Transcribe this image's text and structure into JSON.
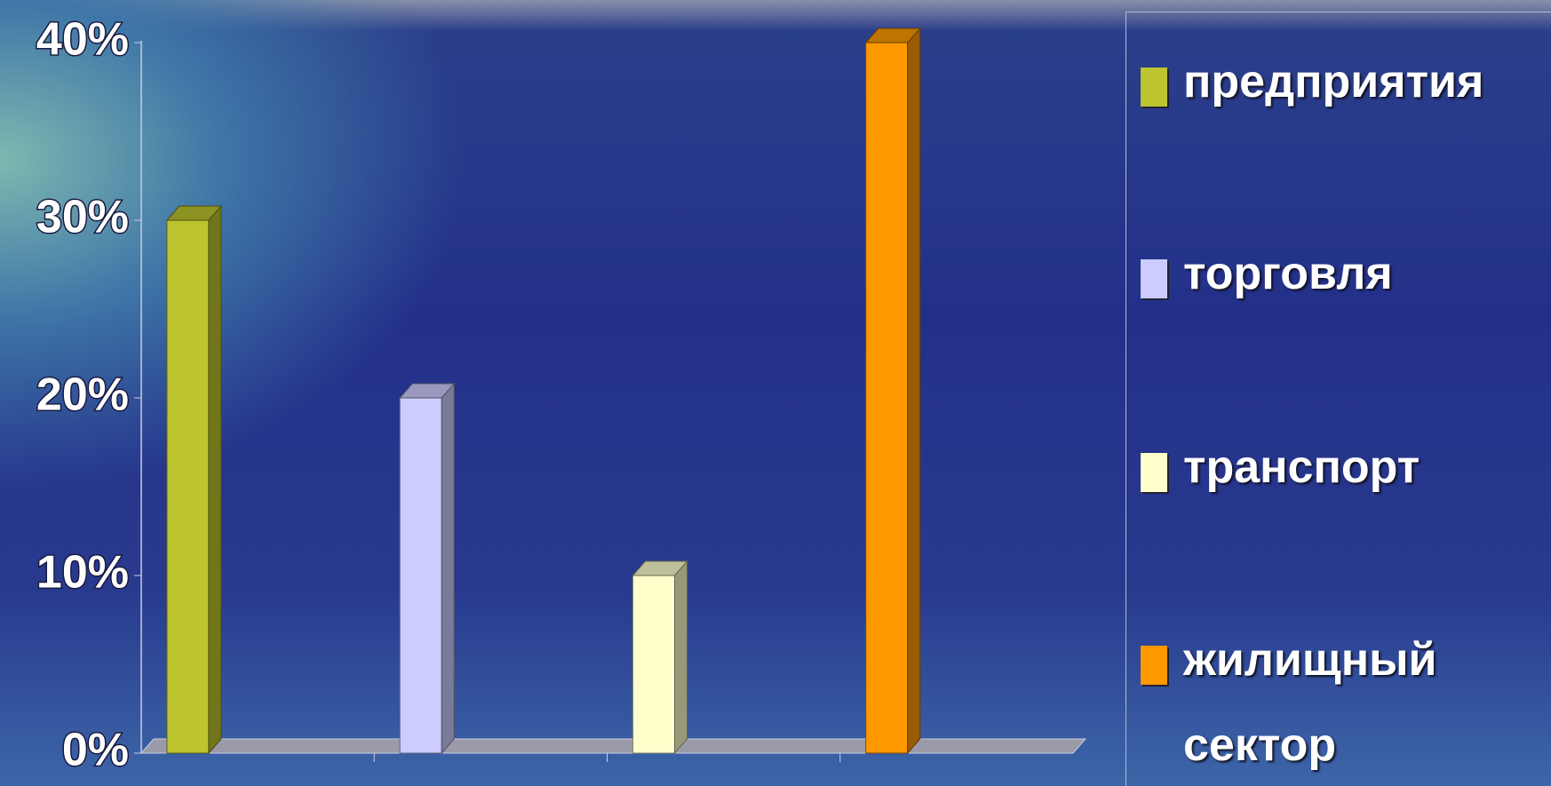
{
  "chart_data": {
    "type": "bar3d",
    "series": [
      {
        "name": "предприятия",
        "color": "#bcc42f",
        "values": [
          30
        ]
      },
      {
        "name": "торговля",
        "color": "#ccccff",
        "values": [
          20
        ]
      },
      {
        "name": "транспорт",
        "color": "#ffffcc",
        "values": [
          10
        ]
      },
      {
        "name": "жилищный сектор",
        "color": "#ff9900",
        "values": [
          40
        ]
      }
    ],
    "ylim": [
      0,
      40
    ],
    "yticks": [
      {
        "value": 0,
        "label": "0%"
      },
      {
        "value": 10,
        "label": "10%"
      },
      {
        "value": 20,
        "label": "20%"
      },
      {
        "value": 30,
        "label": "30%"
      },
      {
        "value": 40,
        "label": "40%"
      }
    ],
    "legend": "right"
  }
}
